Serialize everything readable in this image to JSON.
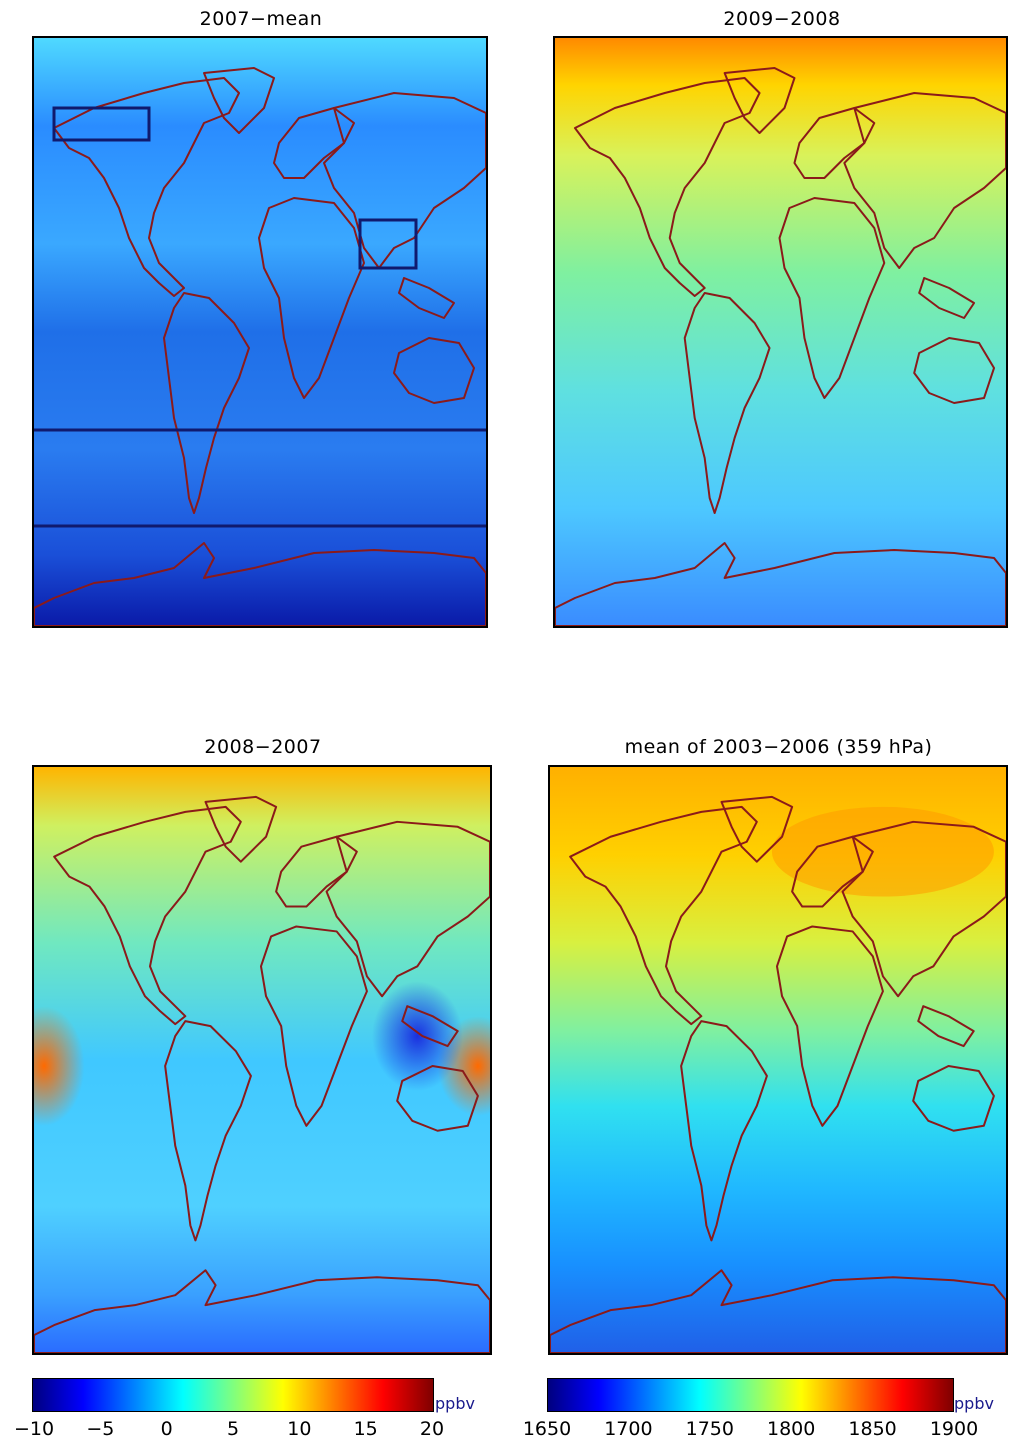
{
  "panels": [
    {
      "title": "2007−mean"
    },
    {
      "title": "2009−2008"
    },
    {
      "title": "2008−2007"
    },
    {
      "title": "mean of 2003−2006 (359 hPa)"
    }
  ],
  "colorbars": [
    {
      "unit": "ppbv",
      "ticks": [
        "−10",
        "−5",
        "0",
        "5",
        "10",
        "15",
        "20"
      ]
    },
    {
      "unit": "ppbv",
      "ticks": [
        "1650",
        "1700",
        "1750",
        "1800",
        "1850",
        "1900"
      ]
    }
  ],
  "colors": {
    "coast": "#8b1a1a",
    "box": "#101a6e",
    "jet_stops": [
      "#00007f",
      "#0000ff",
      "#007fff",
      "#00ffff",
      "#7fff7f",
      "#ffff00",
      "#ff7f00",
      "#ff0000",
      "#7f0000"
    ]
  }
}
